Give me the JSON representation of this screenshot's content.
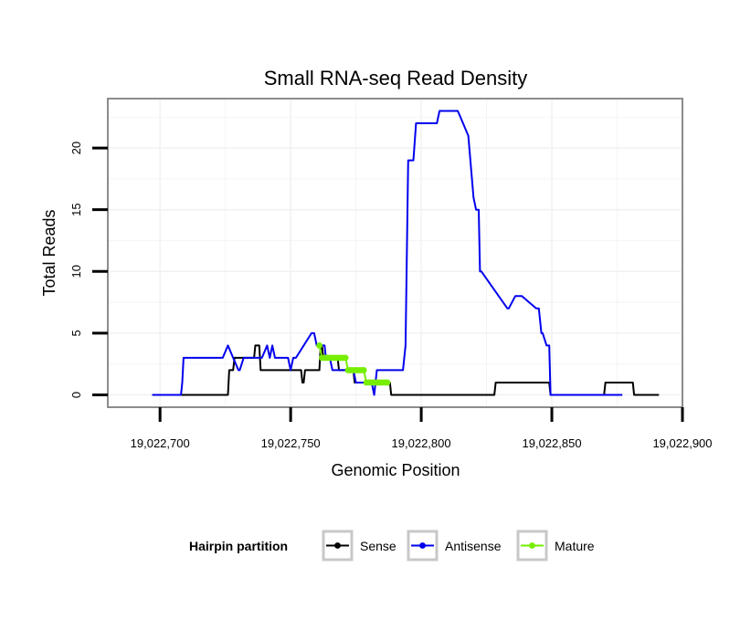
{
  "chart_data": {
    "type": "line",
    "title": "Small RNA-seq Read Density",
    "xlabel": "Genomic Position",
    "ylabel": "Total Reads",
    "xlim": [
      19022680,
      19022900
    ],
    "ylim": [
      -1,
      24
    ],
    "x_ticks": [
      19022700,
      19022750,
      19022800,
      19022850,
      19022900
    ],
    "x_tick_labels": [
      "19,022,700",
      "19,022,750",
      "19,022,800",
      "19,022,850",
      "19,022,900"
    ],
    "y_ticks": [
      0,
      5,
      10,
      15,
      20
    ],
    "y_tick_labels": [
      "0",
      "5",
      "10",
      "15",
      "20"
    ],
    "grid": true,
    "legend": {
      "title": "Hairpin partition",
      "position": "bottom",
      "entries": [
        "Sense",
        "Antisense",
        "Mature"
      ]
    },
    "series": [
      {
        "name": "Sense",
        "color": "#000000",
        "style": "line",
        "x": [
          19022697,
          19022703,
          19022710,
          19022720,
          19022726,
          19022726.5,
          19022728,
          19022728.5,
          19022736,
          19022736.5,
          19022738,
          19022738.5,
          19022741,
          19022741.5,
          19022754,
          19022754.5,
          19022755,
          19022755.5,
          19022761,
          19022761.5,
          19022762,
          19022762.5,
          19022768,
          19022768.5,
          19022774,
          19022774.5,
          19022780,
          19022780.5,
          19022788,
          19022788.5,
          19022828,
          19022828.5,
          19022849,
          19022849.5,
          19022870,
          19022870.5,
          19022881,
          19022881.5,
          19022891
        ],
        "y": [
          0,
          0,
          0,
          0,
          0,
          2,
          2,
          3,
          3,
          4,
          4,
          2,
          2,
          2,
          2,
          1,
          1,
          2,
          2,
          4,
          4,
          3,
          3,
          2,
          2,
          1,
          1,
          1,
          1,
          0,
          0,
          1,
          1,
          0,
          0,
          1,
          1,
          0,
          0
        ]
      },
      {
        "name": "Antisense",
        "color": "#0000ee",
        "style": "line",
        "x": [
          19022697,
          19022701,
          19022703,
          19022707,
          19022707.5,
          19022708,
          19022708.5,
          19022709,
          19022711,
          19022724,
          19022726,
          19022728,
          19022730,
          19022730.5,
          19022732,
          19022732.5,
          19022737,
          19022739,
          19022741,
          19022742,
          19022743,
          19022744,
          19022749,
          19022750,
          19022751,
          19022752,
          19022758,
          19022759,
          19022760,
          19022761,
          19022763,
          19022763.5,
          19022765,
          19022766,
          19022767,
          19022768,
          19022774,
          19022775,
          19022776,
          19022781,
          19022782,
          19022783,
          19022793,
          19022794,
          19022795,
          19022797,
          19022798,
          19022800,
          19022801,
          19022806,
          19022807,
          19022814,
          19022818,
          19022820,
          19022821,
          19022822,
          19022822.5,
          19022823,
          19022833,
          19022833.5,
          19022836,
          19022837,
          19022838,
          19022838.5,
          19022844,
          19022845,
          19022846,
          19022846.5,
          19022848,
          19022849,
          19022849.5,
          19022852,
          19022852.5,
          19022854,
          19022855,
          19022855.5,
          19022857,
          19022857.5,
          19022864,
          19022868,
          19022871,
          19022872,
          19022872.5,
          19022876,
          19022877
        ],
        "y": [
          0,
          0,
          0,
          0,
          0,
          0,
          1,
          3,
          3,
          3,
          4,
          3,
          2,
          2,
          3,
          3,
          3,
          3,
          4,
          3,
          4,
          3,
          3,
          2,
          3,
          3,
          5,
          5,
          4,
          4,
          4,
          3,
          3,
          2,
          2,
          2,
          2,
          1,
          1,
          1,
          0,
          2,
          2,
          4,
          19,
          19,
          22,
          22,
          22,
          22,
          23,
          23,
          21,
          16,
          15,
          15,
          10,
          10,
          7,
          7,
          8,
          8,
          8,
          8,
          7,
          7,
          5,
          5,
          4,
          4,
          0,
          0,
          0,
          0,
          0,
          0,
          0,
          0,
          0,
          0,
          0,
          0,
          0,
          0,
          0
        ]
      },
      {
        "name": "Mature",
        "color": "#76ee00",
        "style": "points",
        "x": [
          19022761,
          19022762,
          19022763,
          19022764,
          19022765,
          19022766,
          19022767,
          19022768,
          19022769,
          19022770,
          19022771,
          19022772,
          19022773,
          19022774,
          19022775,
          19022776,
          19022777,
          19022778,
          19022779,
          19022780,
          19022781,
          19022782,
          19022783,
          19022784,
          19022785,
          19022786,
          19022787
        ],
        "y": [
          4,
          3,
          3,
          3,
          3,
          3,
          3,
          3,
          3,
          3,
          3,
          2,
          2,
          2,
          2,
          2,
          2,
          2,
          1,
          1,
          1,
          1,
          1,
          1,
          1,
          1,
          1
        ]
      }
    ]
  }
}
